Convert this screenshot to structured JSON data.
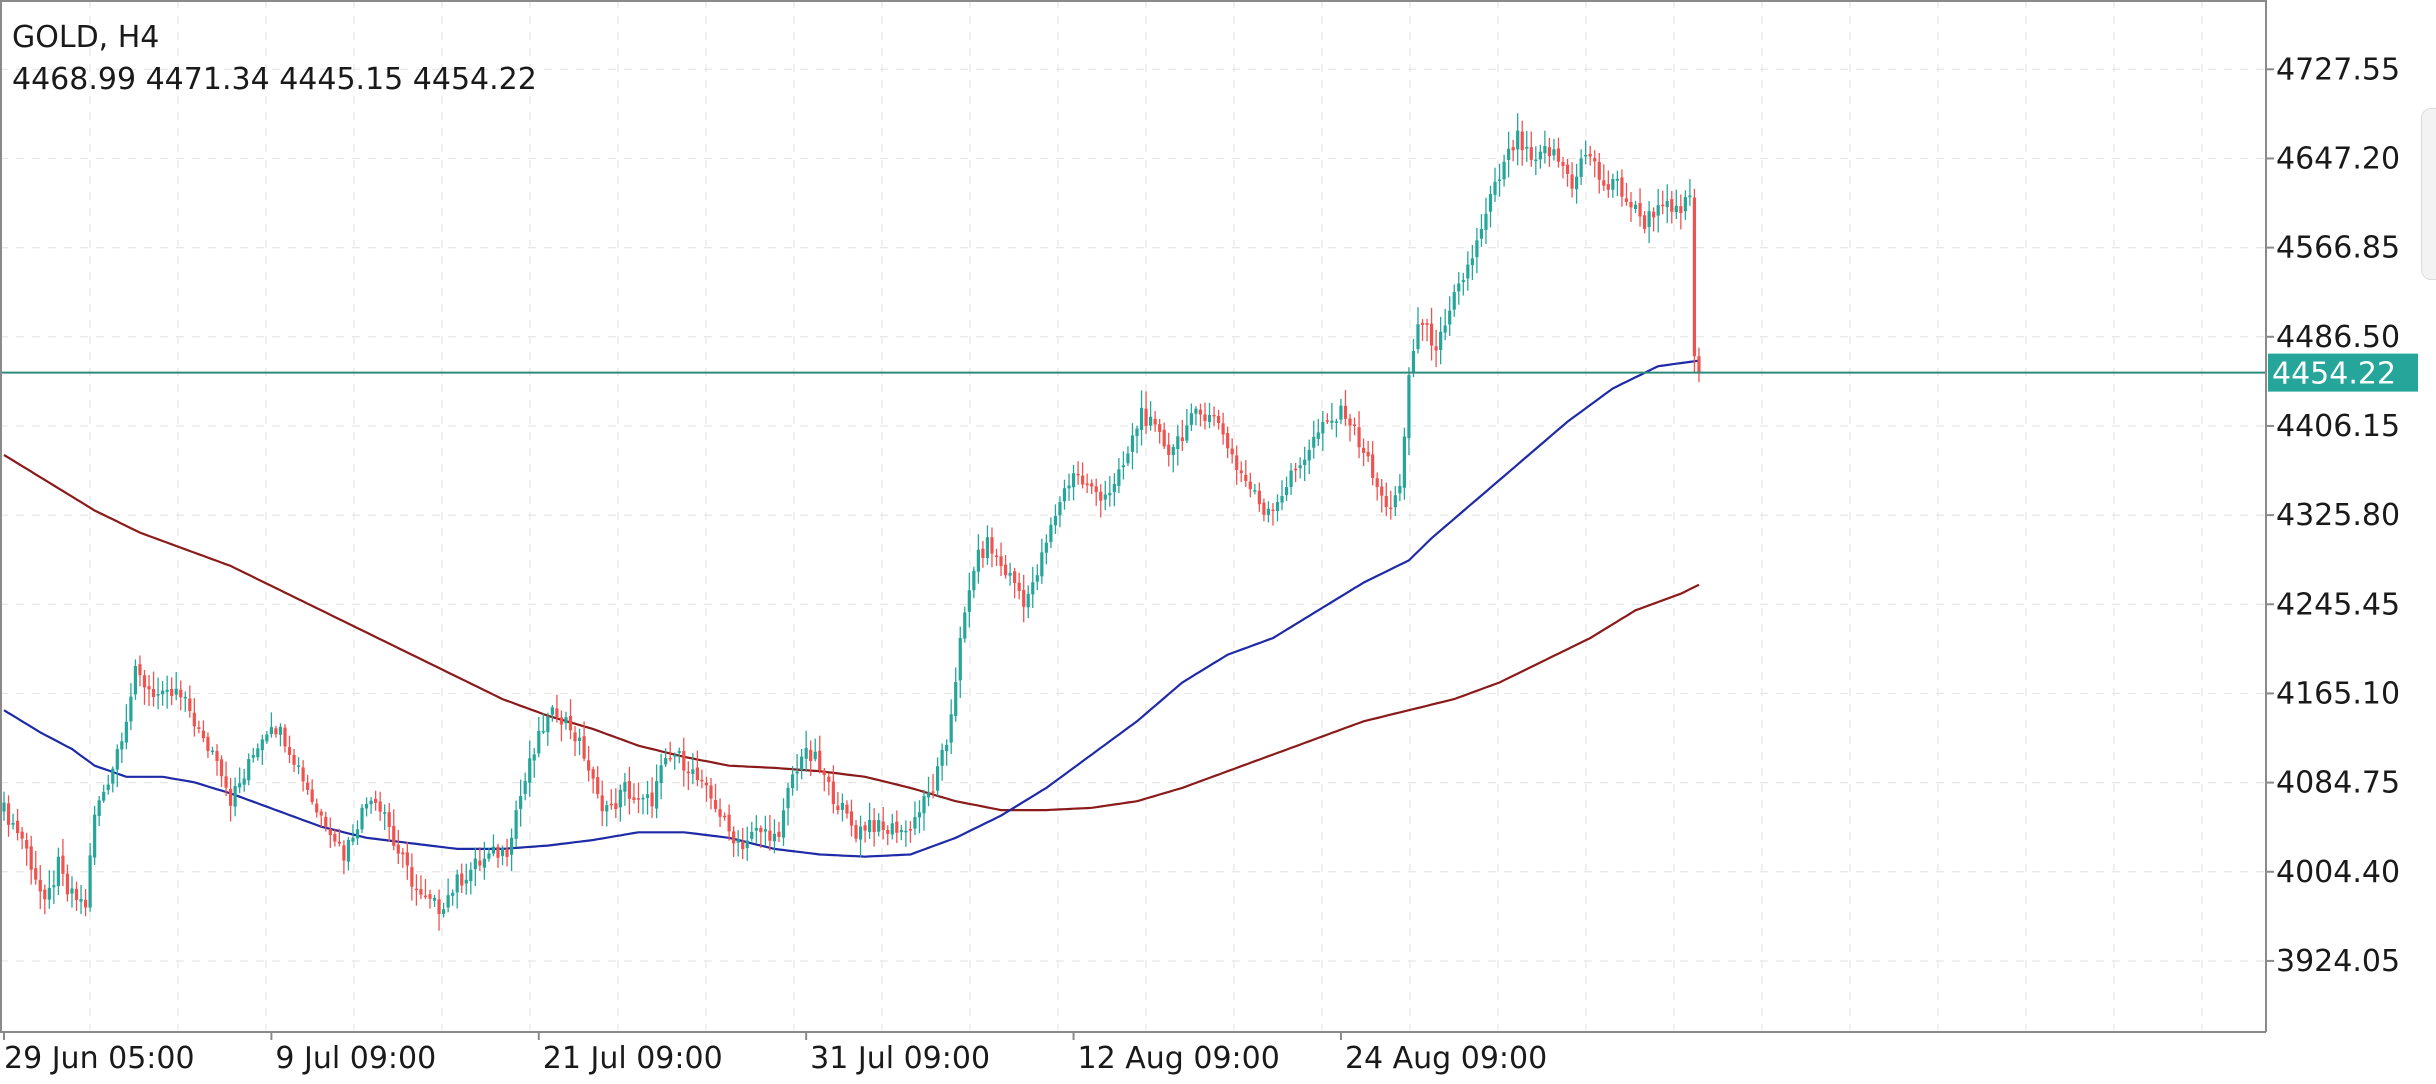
{
  "header": {
    "title": "GOLD, H4",
    "ohlc": "4468.99 4471.34 4445.15 4454.22"
  },
  "colors": {
    "bull_candle": "#26a69a",
    "bear_candle": "#ef5350",
    "ma_fast": "#1f2aa6",
    "ma_slow": "#8b1a1a",
    "price_line": "#2e8b7a",
    "price_label_bg": "#26a69a",
    "grid": "#e6e6e6",
    "axis": "#8a8a8a"
  },
  "chart_data": {
    "type": "candlestick",
    "symbol": "GOLD",
    "timeframe": "H4",
    "current_price": 4454.22,
    "current_price_label": "4454.22",
    "ylim": [
      3860,
      4790
    ],
    "y_ticks": [
      3924.05,
      4004.4,
      4084.75,
      4165.1,
      4245.45,
      4325.8,
      4406.15,
      4486.5,
      4566.85,
      4647.2,
      4727.55
    ],
    "y_tick_labels": [
      "3924.05",
      "4004.40",
      "4084.75",
      "4165.10",
      "4245.45",
      "4325.80",
      "4406.15",
      "4486.50",
      "4566.85",
      "4647.20",
      "4727.55"
    ],
    "x_ticks": [
      {
        "label": "29 Jun 05:00",
        "bar": 0
      },
      {
        "label": "9 Jul 09:00",
        "bar": 59
      },
      {
        "label": "21 Jul 09:00",
        "bar": 118
      },
      {
        "label": "31 Jul 09:00",
        "bar": 177
      },
      {
        "label": "12 Aug 09:00",
        "bar": 236
      },
      {
        "label": "24 Aug 09:00",
        "bar": 295
      }
    ],
    "bar_count_visible": 500,
    "grid": true,
    "price_anchors": [
      [
        0,
        4060
      ],
      [
        4,
        4035
      ],
      [
        7,
        4000
      ],
      [
        9,
        3972
      ],
      [
        12,
        4010
      ],
      [
        14,
        3985
      ],
      [
        18,
        3975
      ],
      [
        20,
        4055
      ],
      [
        24,
        4100
      ],
      [
        27,
        4145
      ],
      [
        29,
        4182
      ],
      [
        32,
        4170
      ],
      [
        35,
        4160
      ],
      [
        38,
        4165
      ],
      [
        41,
        4150
      ],
      [
        44,
        4120
      ],
      [
        47,
        4110
      ],
      [
        50,
        4070
      ],
      [
        53,
        4090
      ],
      [
        56,
        4120
      ],
      [
        59,
        4140
      ],
      [
        62,
        4125
      ],
      [
        66,
        4090
      ],
      [
        69,
        4060
      ],
      [
        72,
        4045
      ],
      [
        75,
        4020
      ],
      [
        78,
        4050
      ],
      [
        81,
        4075
      ],
      [
        84,
        4060
      ],
      [
        86,
        4030
      ],
      [
        89,
        4005
      ],
      [
        92,
        3980
      ],
      [
        96,
        3972
      ],
      [
        100,
        3995
      ],
      [
        104,
        4010
      ],
      [
        108,
        4020
      ],
      [
        111,
        4025
      ],
      [
        113,
        4060
      ],
      [
        116,
        4100
      ],
      [
        119,
        4135
      ],
      [
        122,
        4150
      ],
      [
        125,
        4135
      ],
      [
        128,
        4110
      ],
      [
        131,
        4070
      ],
      [
        134,
        4060
      ],
      [
        137,
        4080
      ],
      [
        140,
        4065
      ],
      [
        143,
        4070
      ],
      [
        145,
        4095
      ],
      [
        148,
        4110
      ],
      [
        151,
        4100
      ],
      [
        154,
        4080
      ],
      [
        157,
        4065
      ],
      [
        160,
        4040
      ],
      [
        163,
        4030
      ],
      [
        166,
        4040
      ],
      [
        169,
        4040
      ],
      [
        171,
        4030
      ],
      [
        173,
        4080
      ],
      [
        176,
        4110
      ],
      [
        179,
        4105
      ],
      [
        182,
        4080
      ],
      [
        185,
        4060
      ],
      [
        188,
        4040
      ],
      [
        191,
        4050
      ],
      [
        194,
        4040
      ],
      [
        197,
        4045
      ],
      [
        199,
        4040
      ],
      [
        202,
        4060
      ],
      [
        205,
        4080
      ],
      [
        208,
        4120
      ],
      [
        211,
        4210
      ],
      [
        214,
        4280
      ],
      [
        217,
        4300
      ],
      [
        220,
        4280
      ],
      [
        223,
        4265
      ],
      [
        225,
        4250
      ],
      [
        227,
        4260
      ],
      [
        230,
        4300
      ],
      [
        233,
        4340
      ],
      [
        236,
        4365
      ],
      [
        239,
        4350
      ],
      [
        242,
        4345
      ],
      [
        245,
        4350
      ],
      [
        248,
        4380
      ],
      [
        251,
        4420
      ],
      [
        254,
        4400
      ],
      [
        257,
        4385
      ],
      [
        260,
        4400
      ],
      [
        263,
        4415
      ],
      [
        266,
        4420
      ],
      [
        269,
        4400
      ],
      [
        272,
        4370
      ],
      [
        275,
        4350
      ],
      [
        278,
        4330
      ],
      [
        281,
        4340
      ],
      [
        284,
        4360
      ],
      [
        287,
        4380
      ],
      [
        290,
        4400
      ],
      [
        293,
        4410
      ],
      [
        296,
        4420
      ],
      [
        298,
        4400
      ],
      [
        300,
        4385
      ],
      [
        302,
        4360
      ],
      [
        304,
        4340
      ],
      [
        306,
        4335
      ],
      [
        308,
        4345
      ],
      [
        310,
        4450
      ],
      [
        312,
        4500
      ],
      [
        314,
        4490
      ],
      [
        316,
        4480
      ],
      [
        318,
        4490
      ],
      [
        320,
        4520
      ],
      [
        322,
        4540
      ],
      [
        324,
        4560
      ],
      [
        326,
        4580
      ],
      [
        328,
        4610
      ],
      [
        330,
        4630
      ],
      [
        332,
        4650
      ],
      [
        334,
        4665
      ],
      [
        336,
        4650
      ],
      [
        338,
        4640
      ],
      [
        340,
        4655
      ],
      [
        342,
        4650
      ],
      [
        344,
        4640
      ],
      [
        346,
        4625
      ],
      [
        348,
        4645
      ],
      [
        350,
        4650
      ],
      [
        352,
        4630
      ],
      [
        354,
        4620
      ],
      [
        356,
        4625
      ],
      [
        358,
        4610
      ],
      [
        360,
        4600
      ],
      [
        362,
        4590
      ],
      [
        364,
        4600
      ],
      [
        366,
        4610
      ],
      [
        368,
        4595
      ],
      [
        370,
        4600
      ],
      [
        372,
        4612
      ],
      [
        373,
        4468.99
      ],
      [
        374,
        4454.22
      ]
    ],
    "ma_fast": [
      [
        0,
        4150
      ],
      [
        8,
        4130
      ],
      [
        15,
        4115
      ],
      [
        20,
        4100
      ],
      [
        27,
        4090
      ],
      [
        35,
        4090
      ],
      [
        42,
        4085
      ],
      [
        50,
        4075
      ],
      [
        60,
        4060
      ],
      [
        70,
        4045
      ],
      [
        80,
        4035
      ],
      [
        90,
        4030
      ],
      [
        100,
        4025
      ],
      [
        110,
        4025
      ],
      [
        120,
        4028
      ],
      [
        130,
        4033
      ],
      [
        140,
        4040
      ],
      [
        150,
        4040
      ],
      [
        160,
        4035
      ],
      [
        170,
        4025
      ],
      [
        180,
        4020
      ],
      [
        190,
        4018
      ],
      [
        200,
        4020
      ],
      [
        210,
        4035
      ],
      [
        220,
        4055
      ],
      [
        230,
        4080
      ],
      [
        240,
        4110
      ],
      [
        250,
        4140
      ],
      [
        260,
        4175
      ],
      [
        270,
        4200
      ],
      [
        280,
        4215
      ],
      [
        290,
        4240
      ],
      [
        300,
        4265
      ],
      [
        310,
        4285
      ],
      [
        315,
        4305
      ],
      [
        325,
        4340
      ],
      [
        335,
        4375
      ],
      [
        345,
        4410
      ],
      [
        355,
        4440
      ],
      [
        365,
        4460
      ],
      [
        374,
        4465
      ]
    ],
    "ma_slow": [
      [
        0,
        4380
      ],
      [
        10,
        4355
      ],
      [
        20,
        4330
      ],
      [
        30,
        4310
      ],
      [
        40,
        4295
      ],
      [
        50,
        4280
      ],
      [
        60,
        4260
      ],
      [
        70,
        4240
      ],
      [
        80,
        4220
      ],
      [
        90,
        4200
      ],
      [
        100,
        4180
      ],
      [
        110,
        4160
      ],
      [
        120,
        4145
      ],
      [
        130,
        4133
      ],
      [
        140,
        4118
      ],
      [
        150,
        4108
      ],
      [
        160,
        4100
      ],
      [
        170,
        4098
      ],
      [
        180,
        4095
      ],
      [
        190,
        4090
      ],
      [
        200,
        4080
      ],
      [
        210,
        4068
      ],
      [
        220,
        4060
      ],
      [
        230,
        4060
      ],
      [
        240,
        4062
      ],
      [
        250,
        4068
      ],
      [
        260,
        4080
      ],
      [
        270,
        4095
      ],
      [
        280,
        4110
      ],
      [
        290,
        4125
      ],
      [
        300,
        4140
      ],
      [
        310,
        4150
      ],
      [
        320,
        4160
      ],
      [
        330,
        4175
      ],
      [
        340,
        4195
      ],
      [
        350,
        4215
      ],
      [
        360,
        4240
      ],
      [
        370,
        4255
      ],
      [
        374,
        4263
      ]
    ]
  }
}
